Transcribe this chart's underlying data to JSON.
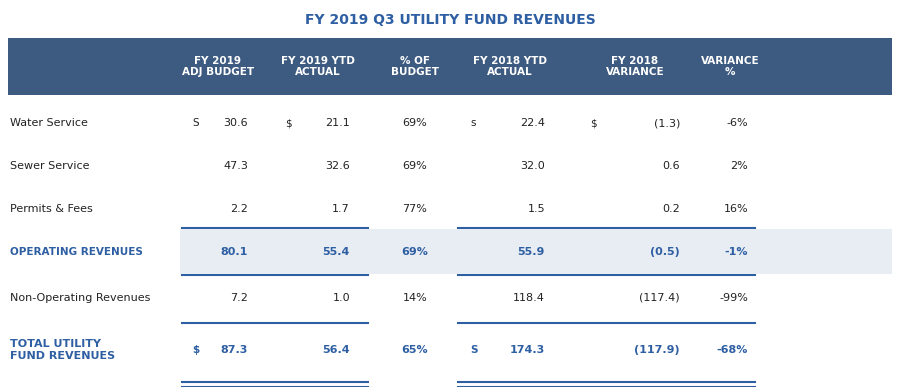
{
  "title": "FY 2019 Q3 UTILITY FUND REVENUES",
  "title_color": "#2E5FA3",
  "header_bg_color": "#3D5A80",
  "header_text_color": "#FFFFFF",
  "subtotal_bg_color": "#E8EDF4",
  "subtotal_text_color": "#2E5FA3",
  "total_text_color": "#2E5FA3",
  "regular_text_color": "#222222",
  "line_color": "#2E5FA3",
  "rows": [
    {
      "label": "Water Service",
      "dollar1": "S",
      "val1": "30.6",
      "dollar2": "$",
      "val2": "21.1",
      "pct": "69%",
      "dollar3": "s",
      "val3": "22.4",
      "dollar4": "$",
      "val4": "(1.3)",
      "var_pct": "-6%",
      "type": "regular"
    },
    {
      "label": "Sewer Service",
      "dollar1": "",
      "val1": "47.3",
      "dollar2": "",
      "val2": "32.6",
      "pct": "69%",
      "dollar3": "",
      "val3": "32.0",
      "dollar4": "",
      "val4": "0.6",
      "var_pct": "2%",
      "type": "regular"
    },
    {
      "label": "Permits & Fees",
      "dollar1": "",
      "val1": "2.2",
      "dollar2": "",
      "val2": "1.7",
      "pct": "77%",
      "dollar3": "",
      "val3": "1.5",
      "dollar4": "",
      "val4": "0.2",
      "var_pct": "16%",
      "type": "regular"
    },
    {
      "label": "OPERATING REVENUES",
      "dollar1": "",
      "val1": "80.1",
      "dollar2": "",
      "val2": "55.4",
      "pct": "69%",
      "dollar3": "",
      "val3": "55.9",
      "dollar4": "",
      "val4": "(0.5)",
      "var_pct": "-1%",
      "type": "subtotal"
    },
    {
      "label": "Non-Operating Revenues",
      "dollar1": "",
      "val1": "7.2",
      "dollar2": "",
      "val2": "1.0",
      "pct": "14%",
      "dollar3": "",
      "val3": "118.4",
      "dollar4": "",
      "val4": "(117.4)",
      "var_pct": "-99%",
      "type": "regular"
    },
    {
      "label": "TOTAL UTILITY\nFUND REVENUES",
      "dollar1": "$",
      "val1": "87.3",
      "dollar2": "",
      "val2": "56.4",
      "pct": "65%",
      "dollar3": "S",
      "val3": "174.3",
      "dollar4": "",
      "val4": "(117.9)",
      "var_pct": "-68%",
      "type": "total"
    }
  ]
}
